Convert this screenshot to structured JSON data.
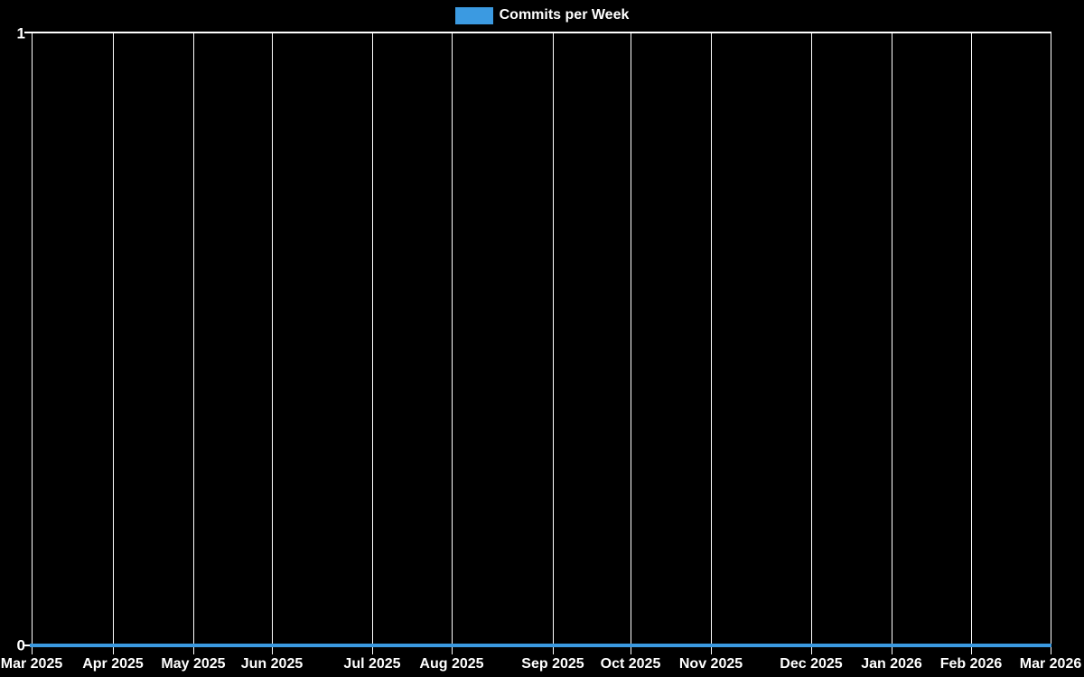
{
  "chart": {
    "legend": {
      "label": "Commits per Week",
      "swatch_color": "#3b9ae1"
    },
    "series_color": "#3b9ae1",
    "background_color": "#000000",
    "grid_color": "#ffffff",
    "text_color": "#ffffff",
    "y_axis": {
      "max": "1",
      "min": "0"
    },
    "x_axis": {
      "ticks": [
        "Mar 2025",
        "Apr 2025",
        "May 2025",
        "Jun 2025",
        "Jul 2025",
        "Aug 2025",
        "Sep 2025",
        "Oct 2025",
        "Nov 2025",
        "Dec 2025",
        "Jan 2026",
        "Feb 2026",
        "Mar 2026"
      ]
    }
  },
  "chart_data": {
    "type": "line",
    "title": "Commits per Week",
    "x": [
      "Mar 2025",
      "Apr 2025",
      "May 2025",
      "Jun 2025",
      "Jul 2025",
      "Aug 2025",
      "Sep 2025",
      "Oct 2025",
      "Nov 2025",
      "Dec 2025",
      "Jan 2026",
      "Feb 2026",
      "Mar 2026"
    ],
    "series": [
      {
        "name": "Commits per Week",
        "values": [
          0,
          0,
          0,
          0,
          0,
          0,
          0,
          0,
          0,
          0,
          0,
          0,
          0
        ]
      }
    ],
    "ylim": [
      0,
      1
    ],
    "y_ticks": [
      0,
      1
    ],
    "xlabel": "",
    "ylabel": "",
    "grid": "vertical-only",
    "legend_position": "top-center",
    "background": "#000000"
  }
}
